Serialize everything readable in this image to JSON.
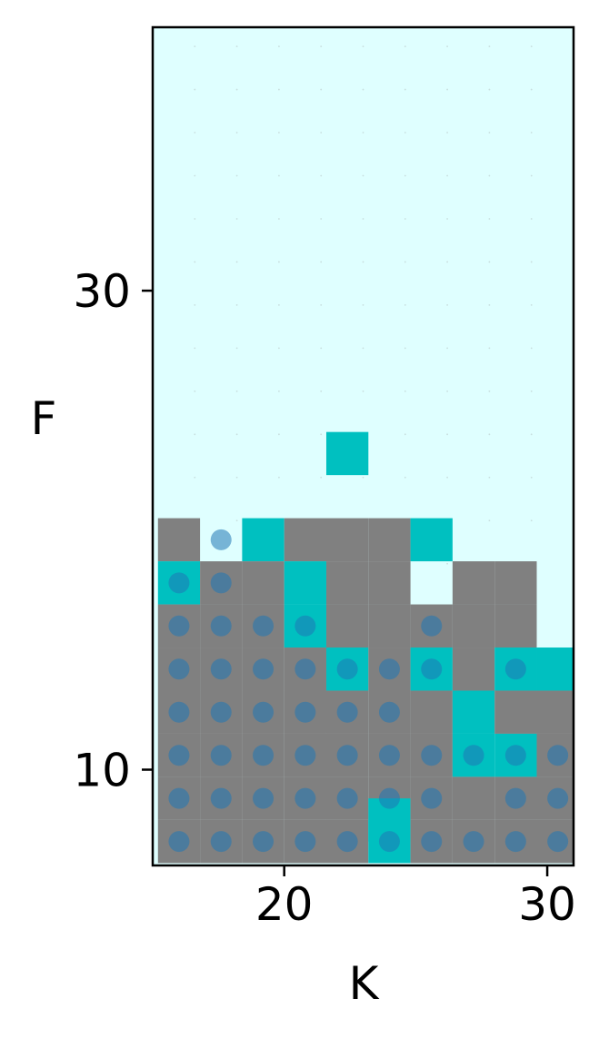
{
  "chart_data": {
    "type": "heatmap",
    "title": "",
    "xlabel": "K",
    "ylabel": "F",
    "xlim": [
      15,
      31
    ],
    "ylim": [
      6,
      41
    ],
    "x_ticks": [
      20,
      30
    ],
    "x_tick_labels": [
      "20",
      "30"
    ],
    "y_ticks": [
      10,
      30
    ],
    "y_tick_labels": [
      "10",
      "30"
    ],
    "grid": true,
    "colors": {
      "background": "#dfffff",
      "filled_cell": "#808080",
      "highlight_cell": "#00c0c0",
      "empty_cell": "#dfffff",
      "marker": "#1f77b4",
      "axes": "#000000"
    },
    "x_columns": [
      16,
      17.6,
      19.2,
      20.8,
      22.4,
      24,
      25.6,
      27.2,
      28.8,
      30.4
    ],
    "y_rows": [
      7,
      8.8,
      10.6,
      12.4,
      14.2,
      16,
      17.8,
      19.6
    ],
    "cell_size": [
      1.6,
      1.8
    ],
    "cells": [
      {
        "x": 16,
        "y": 19.6,
        "state": "filled"
      },
      {
        "x": 16,
        "y": 17.8,
        "state": "highlight"
      },
      {
        "x": 16,
        "y": 16,
        "state": "filled"
      },
      {
        "x": 16,
        "y": 14.2,
        "state": "filled"
      },
      {
        "x": 16,
        "y": 12.4,
        "state": "filled"
      },
      {
        "x": 16,
        "y": 10.6,
        "state": "filled"
      },
      {
        "x": 16,
        "y": 8.8,
        "state": "filled"
      },
      {
        "x": 16,
        "y": 7,
        "state": "filled"
      },
      {
        "x": 17.6,
        "y": 17.8,
        "state": "filled"
      },
      {
        "x": 17.6,
        "y": 16,
        "state": "filled"
      },
      {
        "x": 17.6,
        "y": 14.2,
        "state": "filled"
      },
      {
        "x": 17.6,
        "y": 12.4,
        "state": "filled"
      },
      {
        "x": 17.6,
        "y": 10.6,
        "state": "filled"
      },
      {
        "x": 17.6,
        "y": 8.8,
        "state": "filled"
      },
      {
        "x": 17.6,
        "y": 7,
        "state": "filled"
      },
      {
        "x": 19.2,
        "y": 19.6,
        "state": "highlight"
      },
      {
        "x": 19.2,
        "y": 17.8,
        "state": "filled"
      },
      {
        "x": 19.2,
        "y": 16,
        "state": "filled"
      },
      {
        "x": 19.2,
        "y": 14.2,
        "state": "filled"
      },
      {
        "x": 19.2,
        "y": 12.4,
        "state": "filled"
      },
      {
        "x": 19.2,
        "y": 10.6,
        "state": "filled"
      },
      {
        "x": 19.2,
        "y": 8.8,
        "state": "filled"
      },
      {
        "x": 19.2,
        "y": 7,
        "state": "filled"
      },
      {
        "x": 20.8,
        "y": 19.6,
        "state": "filled"
      },
      {
        "x": 20.8,
        "y": 17.8,
        "state": "highlight"
      },
      {
        "x": 20.8,
        "y": 16,
        "state": "highlight"
      },
      {
        "x": 20.8,
        "y": 14.2,
        "state": "filled"
      },
      {
        "x": 20.8,
        "y": 12.4,
        "state": "filled"
      },
      {
        "x": 20.8,
        "y": 10.6,
        "state": "filled"
      },
      {
        "x": 20.8,
        "y": 8.8,
        "state": "filled"
      },
      {
        "x": 20.8,
        "y": 7,
        "state": "filled"
      },
      {
        "x": 22.4,
        "y": 23.2,
        "state": "highlight"
      },
      {
        "x": 22.4,
        "y": 19.6,
        "state": "filled"
      },
      {
        "x": 22.4,
        "y": 17.8,
        "state": "filled"
      },
      {
        "x": 22.4,
        "y": 16,
        "state": "filled"
      },
      {
        "x": 22.4,
        "y": 14.2,
        "state": "highlight"
      },
      {
        "x": 22.4,
        "y": 12.4,
        "state": "filled"
      },
      {
        "x": 22.4,
        "y": 10.6,
        "state": "filled"
      },
      {
        "x": 22.4,
        "y": 8.8,
        "state": "filled"
      },
      {
        "x": 22.4,
        "y": 7,
        "state": "filled"
      },
      {
        "x": 24,
        "y": 19.6,
        "state": "filled"
      },
      {
        "x": 24,
        "y": 17.8,
        "state": "filled"
      },
      {
        "x": 24,
        "y": 16,
        "state": "filled"
      },
      {
        "x": 24,
        "y": 14.2,
        "state": "filled"
      },
      {
        "x": 24,
        "y": 12.4,
        "state": "filled"
      },
      {
        "x": 24,
        "y": 10.6,
        "state": "filled"
      },
      {
        "x": 24,
        "y": 8.8,
        "state": "filled"
      },
      {
        "x": 24,
        "y": 7,
        "state": "highlight"
      },
      {
        "x": 24,
        "y": 7.9,
        "state": "highlight"
      },
      {
        "x": 25.6,
        "y": 19.6,
        "state": "highlight"
      },
      {
        "x": 25.6,
        "y": 16,
        "state": "filled"
      },
      {
        "x": 25.6,
        "y": 14.2,
        "state": "highlight"
      },
      {
        "x": 25.6,
        "y": 12.4,
        "state": "filled"
      },
      {
        "x": 25.6,
        "y": 10.6,
        "state": "filled"
      },
      {
        "x": 25.6,
        "y": 8.8,
        "state": "filled"
      },
      {
        "x": 25.6,
        "y": 7,
        "state": "filled"
      },
      {
        "x": 27.2,
        "y": 17.8,
        "state": "filled"
      },
      {
        "x": 27.2,
        "y": 16,
        "state": "filled"
      },
      {
        "x": 27.2,
        "y": 14.2,
        "state": "filled"
      },
      {
        "x": 27.2,
        "y": 12.4,
        "state": "highlight"
      },
      {
        "x": 27.2,
        "y": 10.6,
        "state": "highlight"
      },
      {
        "x": 27.2,
        "y": 8.8,
        "state": "filled"
      },
      {
        "x": 27.2,
        "y": 7,
        "state": "filled"
      },
      {
        "x": 28.8,
        "y": 17.8,
        "state": "filled"
      },
      {
        "x": 28.8,
        "y": 16,
        "state": "filled"
      },
      {
        "x": 28.8,
        "y": 14.2,
        "state": "highlight"
      },
      {
        "x": 28.8,
        "y": 12.4,
        "state": "filled"
      },
      {
        "x": 28.8,
        "y": 10.6,
        "state": "highlight"
      },
      {
        "x": 28.8,
        "y": 8.8,
        "state": "filled"
      },
      {
        "x": 28.8,
        "y": 7,
        "state": "filled"
      },
      {
        "x": 30.4,
        "y": 14.2,
        "state": "highlight"
      },
      {
        "x": 30.4,
        "y": 12.4,
        "state": "filled"
      },
      {
        "x": 30.4,
        "y": 10.6,
        "state": "filled"
      },
      {
        "x": 30.4,
        "y": 8.8,
        "state": "filled"
      },
      {
        "x": 30.4,
        "y": 7,
        "state": "filled"
      }
    ],
    "points": [
      {
        "x": 16,
        "y": 7
      },
      {
        "x": 17.6,
        "y": 7
      },
      {
        "x": 19.2,
        "y": 7
      },
      {
        "x": 20.8,
        "y": 7
      },
      {
        "x": 22.4,
        "y": 7
      },
      {
        "x": 24,
        "y": 7
      },
      {
        "x": 25.6,
        "y": 7
      },
      {
        "x": 27.2,
        "y": 7
      },
      {
        "x": 28.8,
        "y": 7
      },
      {
        "x": 30.4,
        "y": 7
      },
      {
        "x": 16,
        "y": 8.8
      },
      {
        "x": 17.6,
        "y": 8.8
      },
      {
        "x": 19.2,
        "y": 8.8
      },
      {
        "x": 20.8,
        "y": 8.8
      },
      {
        "x": 22.4,
        "y": 8.8
      },
      {
        "x": 24,
        "y": 8.8
      },
      {
        "x": 25.6,
        "y": 8.8
      },
      {
        "x": 28.8,
        "y": 8.8
      },
      {
        "x": 30.4,
        "y": 8.8
      },
      {
        "x": 16,
        "y": 10.6
      },
      {
        "x": 17.6,
        "y": 10.6
      },
      {
        "x": 19.2,
        "y": 10.6
      },
      {
        "x": 20.8,
        "y": 10.6
      },
      {
        "x": 22.4,
        "y": 10.6
      },
      {
        "x": 24,
        "y": 10.6
      },
      {
        "x": 25.6,
        "y": 10.6
      },
      {
        "x": 27.2,
        "y": 10.6
      },
      {
        "x": 28.8,
        "y": 10.6
      },
      {
        "x": 30.4,
        "y": 10.6
      },
      {
        "x": 16,
        "y": 12.4
      },
      {
        "x": 17.6,
        "y": 12.4
      },
      {
        "x": 19.2,
        "y": 12.4
      },
      {
        "x": 20.8,
        "y": 12.4
      },
      {
        "x": 22.4,
        "y": 12.4
      },
      {
        "x": 24,
        "y": 12.4
      },
      {
        "x": 16,
        "y": 14.2
      },
      {
        "x": 17.6,
        "y": 14.2
      },
      {
        "x": 19.2,
        "y": 14.2
      },
      {
        "x": 20.8,
        "y": 14.2
      },
      {
        "x": 22.4,
        "y": 14.2
      },
      {
        "x": 24,
        "y": 14.2
      },
      {
        "x": 25.6,
        "y": 14.2
      },
      {
        "x": 28.8,
        "y": 14.2
      },
      {
        "x": 16,
        "y": 16
      },
      {
        "x": 17.6,
        "y": 16
      },
      {
        "x": 19.2,
        "y": 16
      },
      {
        "x": 20.8,
        "y": 16
      },
      {
        "x": 25.6,
        "y": 16
      },
      {
        "x": 16,
        "y": 17.8
      },
      {
        "x": 17.6,
        "y": 17.8
      },
      {
        "x": 17.6,
        "y": 19.6
      }
    ]
  }
}
